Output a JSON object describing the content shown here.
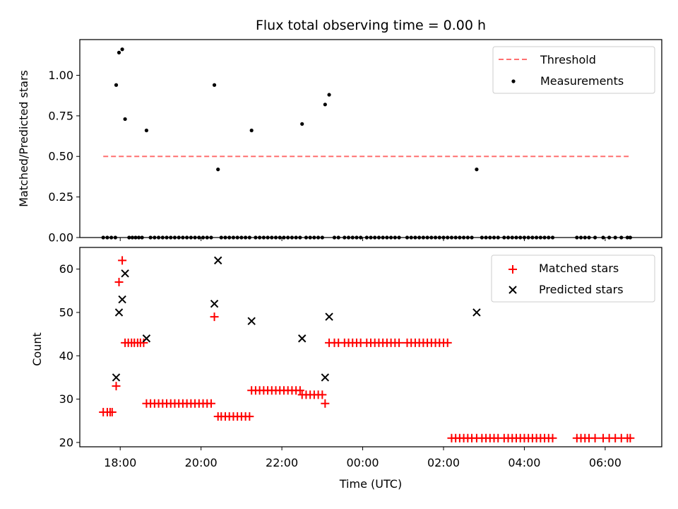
{
  "chart_data": [
    {
      "type": "scatter",
      "title": "Flux total observing time = 0.00 h",
      "xlabel": "",
      "ylabel": "Matched/Predicted stars",
      "ylim": [
        0,
        1.22
      ],
      "xlim_hours": [
        17.0,
        31.4
      ],
      "yticks": [
        0.0,
        0.25,
        0.5,
        0.75,
        1.0
      ],
      "yticklabels": [
        "0.00",
        "0.25",
        "0.50",
        "0.75",
        "1.00"
      ],
      "legend_position": "top-right",
      "legend": [
        "Threshold",
        "Measurements"
      ],
      "threshold": {
        "name": "Threshold",
        "value": 0.5,
        "x_start": 17.58,
        "x_end": 30.58,
        "color": "#ff7070",
        "style": "dashed"
      },
      "series": [
        {
          "name": "Measurements",
          "marker": "dot",
          "color": "#000000",
          "x": [
            17.9,
            17.97,
            18.05,
            18.12,
            18.65,
            20.33,
            20.42,
            21.25,
            22.5,
            23.07,
            23.17,
            26.82
          ],
          "y": [
            0.94,
            1.14,
            1.16,
            0.73,
            0.66,
            0.94,
            0.42,
            0.66,
            0.7,
            0.82,
            0.88,
            0.42
          ]
        },
        {
          "name": "",
          "marker": "dot",
          "color": "#000000",
          "x": [
            17.58,
            17.68,
            17.78,
            17.88,
            18.22,
            18.3,
            18.38,
            18.46,
            18.54,
            18.75,
            18.85,
            18.95,
            19.05,
            19.15,
            19.25,
            19.35,
            19.45,
            19.55,
            19.65,
            19.75,
            19.85,
            19.95,
            20.05,
            20.15,
            20.25,
            20.5,
            20.6,
            20.7,
            20.8,
            20.9,
            21.0,
            21.1,
            21.2,
            21.35,
            21.45,
            21.55,
            21.65,
            21.75,
            21.85,
            21.95,
            22.05,
            22.15,
            22.25,
            22.35,
            22.45,
            22.6,
            22.7,
            22.8,
            22.9,
            23.0,
            23.3,
            23.4,
            23.55,
            23.65,
            23.75,
            23.85,
            23.95,
            24.1,
            24.2,
            24.3,
            24.4,
            24.5,
            24.6,
            24.7,
            24.8,
            24.9,
            25.1,
            25.2,
            25.3,
            25.4,
            25.5,
            25.6,
            25.7,
            25.8,
            25.9,
            26.0,
            26.1,
            26.2,
            26.3,
            26.4,
            26.5,
            26.6,
            26.7,
            26.95,
            27.05,
            27.15,
            27.25,
            27.35,
            27.5,
            27.6,
            27.7,
            27.8,
            27.9,
            28.0,
            28.1,
            28.2,
            28.3,
            28.4,
            28.5,
            28.6,
            28.7,
            29.3,
            29.4,
            29.5,
            29.6,
            29.75,
            29.95,
            30.1,
            30.25,
            30.4,
            30.55,
            30.62
          ],
          "y": [
            0,
            0,
            0,
            0,
            0,
            0,
            0,
            0,
            0,
            0,
            0,
            0,
            0,
            0,
            0,
            0,
            0,
            0,
            0,
            0,
            0,
            0,
            0,
            0,
            0,
            0,
            0,
            0,
            0,
            0,
            0,
            0,
            0,
            0,
            0,
            0,
            0,
            0,
            0,
            0,
            0,
            0,
            0,
            0,
            0,
            0,
            0,
            0,
            0,
            0,
            0,
            0,
            0,
            0,
            0,
            0,
            0,
            0,
            0,
            0,
            0,
            0,
            0,
            0,
            0,
            0,
            0,
            0,
            0,
            0,
            0,
            0,
            0,
            0,
            0,
            0,
            0,
            0,
            0,
            0,
            0,
            0,
            0,
            0,
            0,
            0,
            0,
            0,
            0,
            0,
            0,
            0,
            0,
            0,
            0,
            0,
            0,
            0,
            0,
            0,
            0,
            0,
            0,
            0,
            0,
            0,
            0,
            0,
            0,
            0,
            0,
            0
          ]
        }
      ]
    },
    {
      "type": "scatter",
      "title": "",
      "xlabel": "Time (UTC)",
      "ylabel": "Count",
      "ylim": [
        19,
        65
      ],
      "xlim_hours": [
        17.0,
        31.4
      ],
      "yticks": [
        20,
        30,
        40,
        50,
        60
      ],
      "yticklabels": [
        "20",
        "30",
        "40",
        "50",
        "60"
      ],
      "xticks_hours": [
        18,
        20,
        22,
        24,
        26,
        28,
        30
      ],
      "xticklabels": [
        "18:00",
        "20:00",
        "22:00",
        "00:00",
        "02:00",
        "04:00",
        "06:00"
      ],
      "legend_position": "top-right",
      "legend": [
        "Matched stars",
        "Predicted stars"
      ],
      "series": [
        {
          "name": "Matched stars",
          "marker": "plus",
          "color": "#ff0000",
          "x": [
            17.58,
            17.68,
            17.75,
            17.8,
            17.9,
            17.97,
            18.05,
            18.12,
            18.2,
            18.28,
            18.35,
            18.43,
            18.5,
            18.58,
            18.65,
            18.75,
            18.85,
            18.95,
            19.05,
            19.15,
            19.25,
            19.35,
            19.45,
            19.55,
            19.65,
            19.75,
            19.85,
            19.95,
            20.05,
            20.15,
            20.25,
            20.33,
            20.42,
            20.5,
            20.6,
            20.7,
            20.8,
            20.9,
            21.0,
            21.1,
            21.2,
            21.25,
            21.35,
            21.45,
            21.55,
            21.65,
            21.75,
            21.85,
            21.95,
            22.05,
            22.15,
            22.25,
            22.35,
            22.45,
            22.5,
            22.6,
            22.7,
            22.8,
            22.9,
            23.0,
            23.07,
            23.17,
            23.3,
            23.4,
            23.55,
            23.65,
            23.75,
            23.85,
            23.95,
            24.1,
            24.2,
            24.3,
            24.4,
            24.5,
            24.6,
            24.7,
            24.8,
            24.9,
            25.1,
            25.2,
            25.3,
            25.4,
            25.5,
            25.6,
            25.7,
            25.8,
            25.9,
            26.0,
            26.1,
            26.2,
            26.3,
            26.4,
            26.5,
            26.6,
            26.7,
            26.82,
            26.95,
            27.05,
            27.15,
            27.25,
            27.35,
            27.5,
            27.6,
            27.7,
            27.8,
            27.9,
            28.0,
            28.1,
            28.2,
            28.3,
            28.4,
            28.5,
            28.6,
            28.7,
            29.3,
            29.4,
            29.5,
            29.6,
            29.75,
            29.95,
            30.1,
            30.25,
            30.4,
            30.55,
            30.62
          ],
          "y": [
            27,
            27,
            27,
            27,
            33,
            57,
            62,
            43,
            43,
            43,
            43,
            43,
            43,
            43,
            29,
            29,
            29,
            29,
            29,
            29,
            29,
            29,
            29,
            29,
            29,
            29,
            29,
            29,
            29,
            29,
            29,
            49,
            26,
            26,
            26,
            26,
            26,
            26,
            26,
            26,
            26,
            32,
            32,
            32,
            32,
            32,
            32,
            32,
            32,
            32,
            32,
            32,
            32,
            32,
            31,
            31,
            31,
            31,
            31,
            31,
            29,
            43,
            43,
            43,
            43,
            43,
            43,
            43,
            43,
            43,
            43,
            43,
            43,
            43,
            43,
            43,
            43,
            43,
            43,
            43,
            43,
            43,
            43,
            43,
            43,
            43,
            43,
            43,
            43,
            21,
            21,
            21,
            21,
            21,
            21,
            21,
            21,
            21,
            21,
            21,
            21,
            21,
            21,
            21,
            21,
            21,
            21,
            21,
            21,
            21,
            21,
            21,
            21,
            21,
            21,
            21,
            21,
            21,
            21,
            21,
            21,
            21,
            21,
            21,
            21
          ]
        },
        {
          "name": "Predicted stars",
          "marker": "x",
          "color": "#000000",
          "x": [
            17.9,
            17.97,
            18.05,
            18.12,
            18.65,
            20.33,
            20.42,
            21.25,
            22.5,
            23.07,
            23.17,
            26.82
          ],
          "y": [
            35,
            50,
            53,
            59,
            44,
            52,
            62,
            48,
            44,
            35,
            49,
            50
          ]
        }
      ]
    }
  ]
}
